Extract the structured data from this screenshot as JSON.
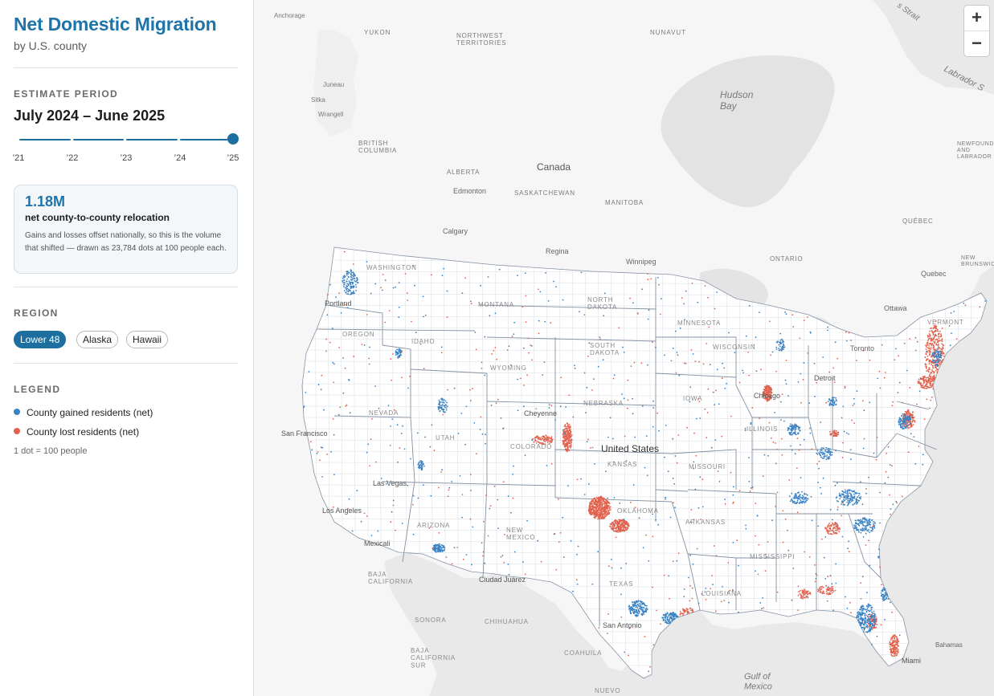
{
  "sidebar": {
    "title": "Net Domestic Migration",
    "subtitle": "by U.S. county",
    "period": {
      "label": "ESTIMATE PERIOD",
      "value": "July 2024 – June 2025",
      "ticks": [
        "’21",
        "’22",
        "’23",
        "’24",
        "’25"
      ],
      "selected_index": 4
    },
    "stat": {
      "value": "1.18M",
      "label": "net county-to-county relocation",
      "note": "Gains and losses offset nationally, so this is the volume that shifted — drawn as 23,784 dots at 100 people each."
    },
    "region": {
      "label": "REGION",
      "options": [
        "Lower 48",
        "Alaska",
        "Hawaii"
      ],
      "selected": "Lower 48"
    },
    "legend": {
      "label": "LEGEND",
      "items": [
        {
          "label": "County gained residents (net)",
          "color": "#3a82c4"
        },
        {
          "label": "County lost residents (net)",
          "color": "#e2614d"
        }
      ],
      "note": "1 dot = 100 people"
    }
  },
  "map": {
    "colors": {
      "water": "#e9e9e9",
      "land": "#f6f6f6",
      "us_land": "#ffffff",
      "border": "#8592a3",
      "gain": "#3a82c4",
      "loss": "#e2614d"
    },
    "zoom": {
      "in_label": "+",
      "out_label": "−"
    },
    "labels": {
      "anchorage": "Anchorage",
      "yukon": "YUKON",
      "nwt": "NORTHWEST\nTERRITORIES",
      "nunavut": "NUNAVUT",
      "strait": "s Strait",
      "labrador_sea": "Labrador S",
      "hudson_bay": "Hudson\nBay",
      "juneau": "Juneau",
      "sitka": "Sitka",
      "wrangell": "Wrangell",
      "bc": "BRITISH\nCOLUMBIA",
      "alberta": "ALBERTA",
      "saskatchewan": "SASKATCHEWAN",
      "manitoba": "MANITOBA",
      "ontario": "ONTARIO",
      "quebec": "QUÉBEC",
      "newfoundland": "NEWFOUNDLAND\nAND\nLABRADOR",
      "new_brunswick": "NEW\nBRUNSWICK",
      "canada": "Canada",
      "edmonton": "Edmonton",
      "calgary": "Calgary",
      "regina": "Regina",
      "winnipeg": "Winnipeg",
      "quebec_city": "Quebec",
      "ottawa": "Ottawa",
      "toronto": "Toronto",
      "washington": "WASHINGTON",
      "oregon": "OREGON",
      "idaho": "IDAHO",
      "montana": "MONTANA",
      "wyoming": "WYOMING",
      "nevada": "NEVADA",
      "utah": "UTAH",
      "colorado": "COLORADO",
      "arizona": "ARIZONA",
      "new_mexico": "NEW\nMEXICO",
      "north_dakota": "NORTH\nDAKOTA",
      "south_dakota": "SOUTH\nDAKOTA",
      "nebraska": "NEBRASKA",
      "kansas": "KANSAS",
      "oklahoma": "OKLAHOMA",
      "texas": "TEXAS",
      "minnesota": "MINNESOTA",
      "iowa": "IOWA",
      "missouri": "MISSOURI",
      "arkansas": "ARKANSAS",
      "louisiana": "LOUISIANA",
      "wisconsin": "WISCONSIN",
      "illinois": "ILLINOIS",
      "mississippi": "MISSISSIPPI",
      "vermont": "VERMONT",
      "portland": "Portland",
      "san_francisco": "San Francisco",
      "las_vegas": "Las Vegas",
      "los_angeles": "Los Angeles",
      "mexicali": "Mexicali",
      "cheyenne": "Cheyenne",
      "ciudad_juarez": "Ciudad Juárez",
      "san_antonio": "San Antonio",
      "chicago": "Chicago",
      "detroit": "Detroit",
      "united_states": "United States",
      "miami": "Miami",
      "sonora": "SONORA",
      "chihuahua": "CHIHUAHUA",
      "coahuila": "COAHUILA",
      "nuevo_leon": "NUEVO",
      "baja_california": "BAJA\nCALIFORNIA",
      "baja_california_sur": "BAJA\nCALIFORNIA\nSUR",
      "bahamas": "Bahamas",
      "gulf_of_mexico": "Gulf of\nMexico"
    }
  }
}
